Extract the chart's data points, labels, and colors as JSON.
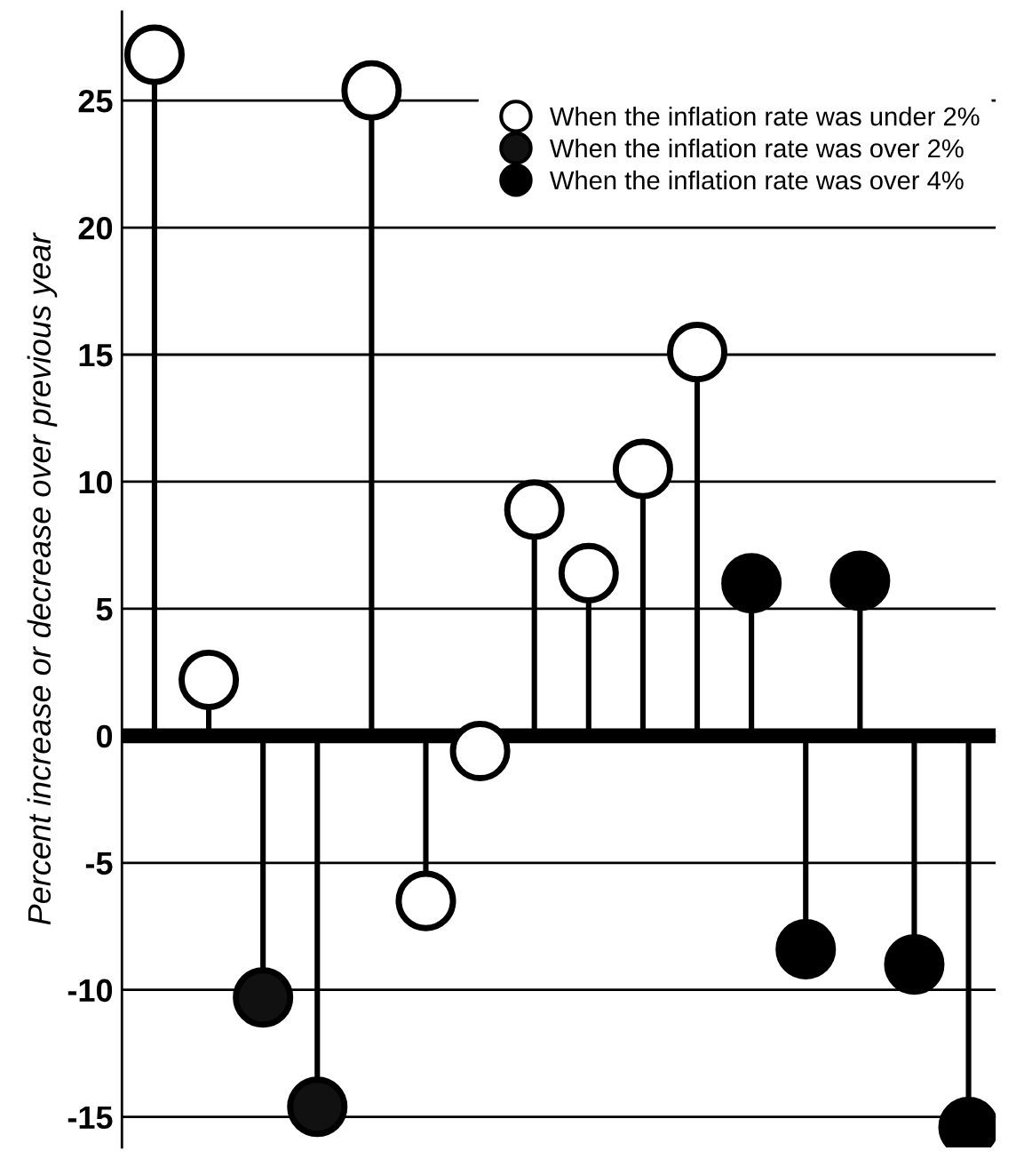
{
  "chart_data": {
    "type": "lollipop",
    "ylabel": "Percent increase or decrease over previous year",
    "categories": [
      null,
      null,
      null,
      null,
      null,
      null,
      null,
      null,
      null,
      null,
      null,
      null,
      null,
      null,
      null,
      null
    ],
    "series": [
      {
        "name": "When the inflation rate was under 2%",
        "color": "#ffffff",
        "values": [
          26.8,
          2.2,
          null,
          null,
          25.4,
          -6.5,
          -0.6,
          8.9,
          6.4,
          10.5,
          15.1,
          null,
          null,
          null,
          null,
          null
        ]
      },
      {
        "name": "When the inflation rate was over 2%",
        "color": "#111111",
        "values": [
          null,
          null,
          -10.3,
          -14.6,
          null,
          null,
          null,
          null,
          null,
          null,
          null,
          null,
          null,
          null,
          null,
          null
        ]
      },
      {
        "name": "When the inflation rate was over 4%",
        "color": "#000000",
        "values": [
          null,
          null,
          null,
          null,
          null,
          null,
          null,
          null,
          null,
          null,
          null,
          6.0,
          -8.4,
          6.1,
          -9.0,
          -15.4
        ]
      }
    ],
    "ylim": [
      -16.2,
      28.5
    ],
    "yticks": [
      -15,
      -10,
      -5,
      0,
      5,
      10,
      15,
      20,
      25
    ],
    "grid": "y",
    "legend": "top right",
    "marker": "circle",
    "tick_labels": "y"
  }
}
